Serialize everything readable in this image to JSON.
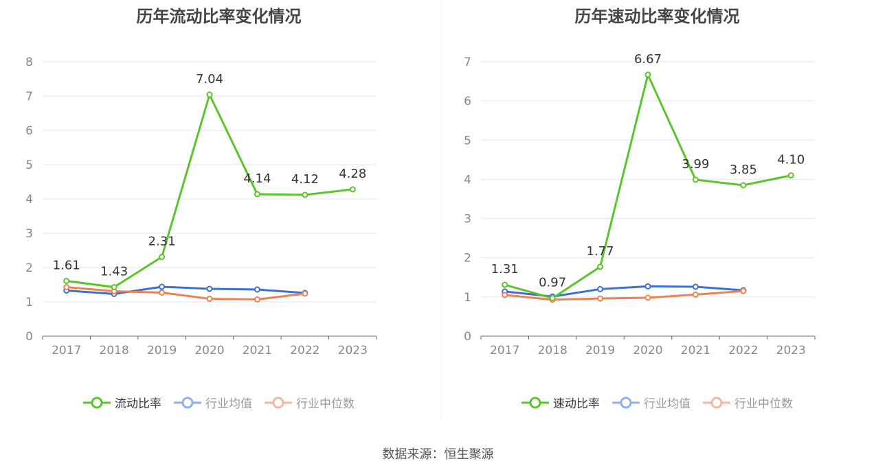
{
  "source": "数据来源：恒生聚源",
  "chart_data": [
    {
      "type": "line",
      "title": "历年流动比率变化情况",
      "x": [
        "2017",
        "2018",
        "2019",
        "2020",
        "2021",
        "2022",
        "2023"
      ],
      "y_ticks": [
        "0",
        "1",
        "2",
        "3",
        "4",
        "5",
        "6",
        "7",
        "8"
      ],
      "ylim": [
        0,
        8
      ],
      "grid": true,
      "legend_position": "bottom",
      "series": [
        {
          "name": "流动比率",
          "color": "#5cc42b",
          "values": [
            1.61,
            1.43,
            2.31,
            7.04,
            4.14,
            4.12,
            4.28
          ],
          "labels": [
            "1.61",
            "1.43",
            "2.31",
            "7.04",
            "4.14",
            "4.12",
            "4.28"
          ],
          "active": true
        },
        {
          "name": "行业均值",
          "color": "#3b6fd4",
          "legend_color": "#8eb1ea",
          "values": [
            1.33,
            1.23,
            1.44,
            1.38,
            1.36,
            1.26,
            null
          ],
          "active": false
        },
        {
          "name": "行业中位数",
          "color": "#f08050",
          "legend_color": "#f4b8a0",
          "values": [
            1.43,
            1.31,
            1.27,
            1.09,
            1.07,
            1.24,
            null
          ],
          "active": false
        }
      ]
    },
    {
      "type": "line",
      "title": "历年速动比率变化情况",
      "x": [
        "2017",
        "2018",
        "2019",
        "2020",
        "2021",
        "2022",
        "2023"
      ],
      "y_ticks": [
        "0",
        "1",
        "2",
        "3",
        "4",
        "5",
        "6",
        "7"
      ],
      "ylim": [
        0,
        7
      ],
      "grid": true,
      "legend_position": "bottom",
      "series": [
        {
          "name": "速动比率",
          "color": "#5cc42b",
          "values": [
            1.31,
            0.97,
            1.77,
            6.67,
            3.99,
            3.85,
            4.1
          ],
          "labels": [
            "1.31",
            "0.97",
            "1.77",
            "6.67",
            "3.99",
            "3.85",
            "4.10"
          ],
          "active": true
        },
        {
          "name": "行业均值",
          "color": "#3b6fd4",
          "legend_color": "#8eb1ea",
          "values": [
            1.14,
            1.01,
            1.2,
            1.27,
            1.26,
            1.17,
            null
          ],
          "active": false
        },
        {
          "name": "行业中位数",
          "color": "#f08050",
          "legend_color": "#f4b8a0",
          "values": [
            1.05,
            0.93,
            0.96,
            0.98,
            1.06,
            1.15,
            null
          ],
          "active": false
        }
      ]
    }
  ]
}
